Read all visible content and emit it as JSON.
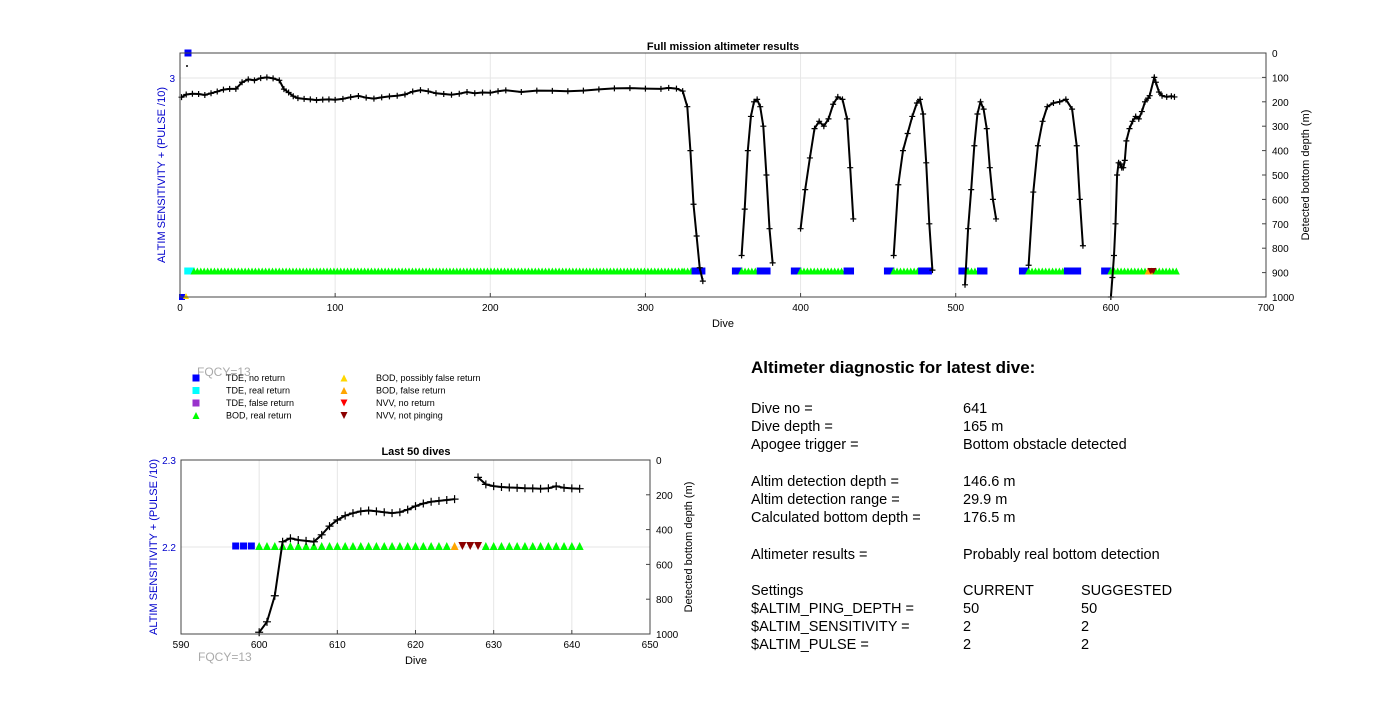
{
  "top_chart": {
    "title": "Full mission altimeter results",
    "xlabel": "Dive",
    "ylabel_left": "ALTIM SENSITIVITY + (PULSE /10)",
    "ylabel_right": "Detected bottom depth (m)",
    "x_ticks": [
      "0",
      "100",
      "200",
      "300",
      "400",
      "500",
      "600",
      "700"
    ],
    "left_ticks": [
      "3"
    ],
    "right_ticks": [
      "0",
      "100",
      "200",
      "300",
      "400",
      "500",
      "600",
      "700",
      "800",
      "900",
      "1000"
    ]
  },
  "bottom_chart": {
    "title": "Last 50 dives",
    "xlabel": "Dive",
    "ylabel_left": "ALTIM SENSITIVITY + (PULSE /10)",
    "ylabel_right": "Detected bottom depth (m)",
    "x_ticks": [
      "590",
      "600",
      "610",
      "620",
      "630",
      "640",
      "650"
    ],
    "left_ticks": [
      "2.3",
      "2.2"
    ],
    "right_ticks": [
      "0",
      "200",
      "400",
      "600",
      "800",
      "1000"
    ]
  },
  "fqcy_label": "FQCY=13",
  "legend": {
    "items": [
      {
        "label": "TDE, no return",
        "color": "#0000ff",
        "symbol": "square"
      },
      {
        "label": "TDE, real return",
        "color": "#00ffff",
        "symbol": "square"
      },
      {
        "label": "TDE, false return",
        "color": "#9932cc",
        "symbol": "square"
      },
      {
        "label": "BOD, real return",
        "color": "#00ff00",
        "symbol": "triangle-up"
      },
      {
        "label": "BOD, possibly false return",
        "color": "#ffd700",
        "symbol": "triangle-up"
      },
      {
        "label": "BOD, false return",
        "color": "#ffa500",
        "symbol": "triangle-up"
      },
      {
        "label": "NVV, no return",
        "color": "#ff0000",
        "symbol": "triangle-down"
      },
      {
        "label": "NVV, not pinging",
        "color": "#8b0000",
        "symbol": "triangle-down"
      }
    ]
  },
  "diagnostic": {
    "title": "Altimeter diagnostic for latest dive:",
    "dive_no_label": "Dive no =",
    "dive_no": "641",
    "dive_depth_label": "Dive depth =",
    "dive_depth": "165 m",
    "apogee_label": "Apogee trigger =",
    "apogee": "Bottom obstacle detected",
    "det_depth_label": "Altim detection depth =",
    "det_depth": "146.6 m",
    "det_range_label": "Altim detection range =",
    "det_range": "29.9 m",
    "calc_label": "Calculated bottom depth =",
    "calc": "176.5 m",
    "results_label": "Altimeter results =",
    "results": "Probably real bottom detection",
    "settings_label": "Settings",
    "current_label": "CURRENT",
    "suggested_label": "SUGGESTED",
    "ping_label": "$ALTIM_PING_DEPTH =",
    "ping_cur": "50",
    "ping_sug": "50",
    "sens_label": "$ALTIM_SENSITIVITY =",
    "sens_cur": "2",
    "sens_sug": "2",
    "pulse_label": "$ALTIM_PULSE =",
    "pulse_cur": "2",
    "pulse_sug": "2"
  },
  "chart_data": [
    {
      "type": "line",
      "title": "Full mission altimeter results",
      "xlabel": "Dive",
      "ylabel": "Detected bottom depth (m)",
      "xlim": [
        0,
        700
      ],
      "ylim_right": [
        1000,
        0
      ],
      "series": [
        {
          "points": [
            [
              1,
              181
            ],
            [
              4,
              170
            ],
            [
              8,
              167
            ],
            [
              12,
              168
            ],
            [
              16,
              172
            ],
            [
              20,
              165
            ],
            [
              24,
              158
            ],
            [
              28,
              150
            ],
            [
              32,
              147
            ],
            [
              36,
              147
            ],
            [
              40,
              120
            ],
            [
              44,
              108
            ],
            [
              48,
              112
            ],
            [
              52,
              103
            ],
            [
              56,
              100
            ],
            [
              60,
              104
            ],
            [
              64,
              112
            ],
            [
              67,
              148
            ],
            [
              70,
              162
            ],
            [
              73,
              177
            ],
            [
              76,
              185
            ],
            [
              80,
              188
            ],
            [
              84,
              190
            ],
            [
              88,
              193
            ],
            [
              92,
              191
            ],
            [
              96,
              190
            ],
            [
              100,
              192
            ],
            [
              105,
              188
            ],
            [
              110,
              181
            ],
            [
              115,
              176
            ],
            [
              120,
              183
            ],
            [
              125,
              187
            ],
            [
              130,
              182
            ],
            [
              135,
              178
            ],
            [
              140,
              175
            ],
            [
              145,
              170
            ],
            [
              150,
              158
            ],
            [
              155,
              152
            ],
            [
              160,
              157
            ],
            [
              165,
              165
            ],
            [
              170,
              168
            ],
            [
              175,
              171
            ],
            [
              180,
              167
            ],
            [
              185,
              160
            ],
            [
              190,
              165
            ],
            [
              195,
              162
            ],
            [
              200,
              163
            ],
            [
              205,
              157
            ],
            [
              210,
              153
            ],
            [
              220,
              160
            ],
            [
              230,
              154
            ],
            [
              240,
              155
            ],
            [
              250,
              157
            ],
            [
              260,
              154
            ],
            [
              270,
              149
            ],
            [
              280,
              145
            ],
            [
              290,
              144
            ],
            [
              300,
              146
            ],
            [
              310,
              147
            ],
            [
              315,
              143
            ],
            [
              320,
              146
            ],
            [
              324,
              156
            ],
            [
              327,
              220
            ],
            [
              329,
              400
            ],
            [
              331,
              620
            ],
            [
              333,
              750
            ],
            [
              335,
              880
            ],
            [
              337,
              935
            ]
          ]
        },
        {
          "points": [
            [
              362,
              830
            ],
            [
              364,
              640
            ],
            [
              366,
              400
            ],
            [
              368,
              260
            ],
            [
              370,
              200
            ],
            [
              372,
              190
            ],
            [
              374,
              220
            ],
            [
              376,
              300
            ],
            [
              378,
              500
            ],
            [
              380,
              720
            ],
            [
              382,
              860
            ]
          ]
        },
        {
          "points": [
            [
              400,
              720
            ],
            [
              403,
              560
            ],
            [
              406,
              430
            ],
            [
              409,
              310
            ],
            [
              412,
              280
            ],
            [
              415,
              300
            ],
            [
              418,
              270
            ],
            [
              421,
              210
            ],
            [
              424,
              180
            ],
            [
              427,
              190
            ],
            [
              430,
              270
            ],
            [
              432,
              470
            ],
            [
              434,
              680
            ]
          ]
        },
        {
          "points": [
            [
              460,
              830
            ],
            [
              463,
              540
            ],
            [
              466,
              400
            ],
            [
              469,
              330
            ],
            [
              472,
              260
            ],
            [
              475,
              205
            ],
            [
              477,
              190
            ],
            [
              479,
              250
            ],
            [
              481,
              450
            ],
            [
              483,
              700
            ],
            [
              485,
              890
            ]
          ]
        },
        {
          "points": [
            [
              506,
              950
            ],
            [
              508,
              720
            ],
            [
              510,
              560
            ],
            [
              512,
              380
            ],
            [
              514,
              250
            ],
            [
              516,
              200
            ],
            [
              518,
              230
            ],
            [
              520,
              310
            ],
            [
              522,
              470
            ],
            [
              524,
              600
            ],
            [
              526,
              680
            ]
          ]
        },
        {
          "points": [
            [
              547,
              870
            ],
            [
              550,
              570
            ],
            [
              553,
              380
            ],
            [
              556,
              280
            ],
            [
              559,
              220
            ],
            [
              563,
              205
            ],
            [
              567,
              200
            ],
            [
              571,
              190
            ],
            [
              575,
              230
            ],
            [
              578,
              380
            ],
            [
              580,
              600
            ],
            [
              582,
              790
            ]
          ]
        },
        {
          "points": [
            [
              600,
              1000
            ],
            [
              601,
              920
            ],
            [
              602,
              830
            ],
            [
              603,
              700
            ],
            [
              604,
              500
            ],
            [
              605,
              450
            ],
            [
              606,
              455
            ],
            [
              607,
              470
            ],
            [
              608,
              470
            ],
            [
              609,
              440
            ],
            [
              610,
              360
            ],
            [
              612,
              310
            ],
            [
              614,
              280
            ],
            [
              616,
              260
            ],
            [
              618,
              270
            ],
            [
              620,
              240
            ],
            [
              622,
              200
            ],
            [
              624,
              185
            ],
            [
              625,
              175
            ],
            [
              628,
              100
            ],
            [
              629,
              120
            ],
            [
              631,
              160
            ],
            [
              633,
              175
            ],
            [
              636,
              180
            ],
            [
              639,
              177
            ],
            [
              641,
              180
            ]
          ]
        }
      ]
    },
    {
      "type": "line",
      "title": "Last 50 dives",
      "xlabel": "Dive",
      "ylabel": "Detected bottom depth (m)",
      "xlim": [
        590,
        650
      ],
      "ylim_right": [
        1000,
        0
      ],
      "series": [
        {
          "points": [
            [
              600,
              990
            ],
            [
              601,
              930
            ],
            [
              602,
              780
            ],
            [
              603,
              470
            ],
            [
              604,
              450
            ],
            [
              605,
              460
            ],
            [
              606,
              465
            ],
            [
              607,
              470
            ],
            [
              608,
              430
            ],
            [
              609,
              380
            ],
            [
              610,
              345
            ],
            [
              611,
              320
            ],
            [
              612,
              305
            ],
            [
              613,
              295
            ],
            [
              614,
              290
            ],
            [
              615,
              295
            ],
            [
              616,
              300
            ],
            [
              617,
              305
            ],
            [
              618,
              300
            ],
            [
              619,
              285
            ],
            [
              620,
              265
            ],
            [
              621,
              250
            ],
            [
              622,
              240
            ],
            [
              623,
              235
            ],
            [
              624,
              230
            ],
            [
              625,
              225
            ]
          ]
        },
        {
          "points": [
            [
              628,
              100
            ],
            [
              629,
              140
            ],
            [
              630,
              150
            ],
            [
              631,
              155
            ],
            [
              632,
              158
            ],
            [
              633,
              160
            ],
            [
              634,
              162
            ],
            [
              635,
              163
            ],
            [
              636,
              165
            ],
            [
              637,
              162
            ],
            [
              638,
              150
            ],
            [
              639,
              160
            ],
            [
              640,
              163
            ],
            [
              641,
              165
            ]
          ]
        }
      ]
    }
  ]
}
